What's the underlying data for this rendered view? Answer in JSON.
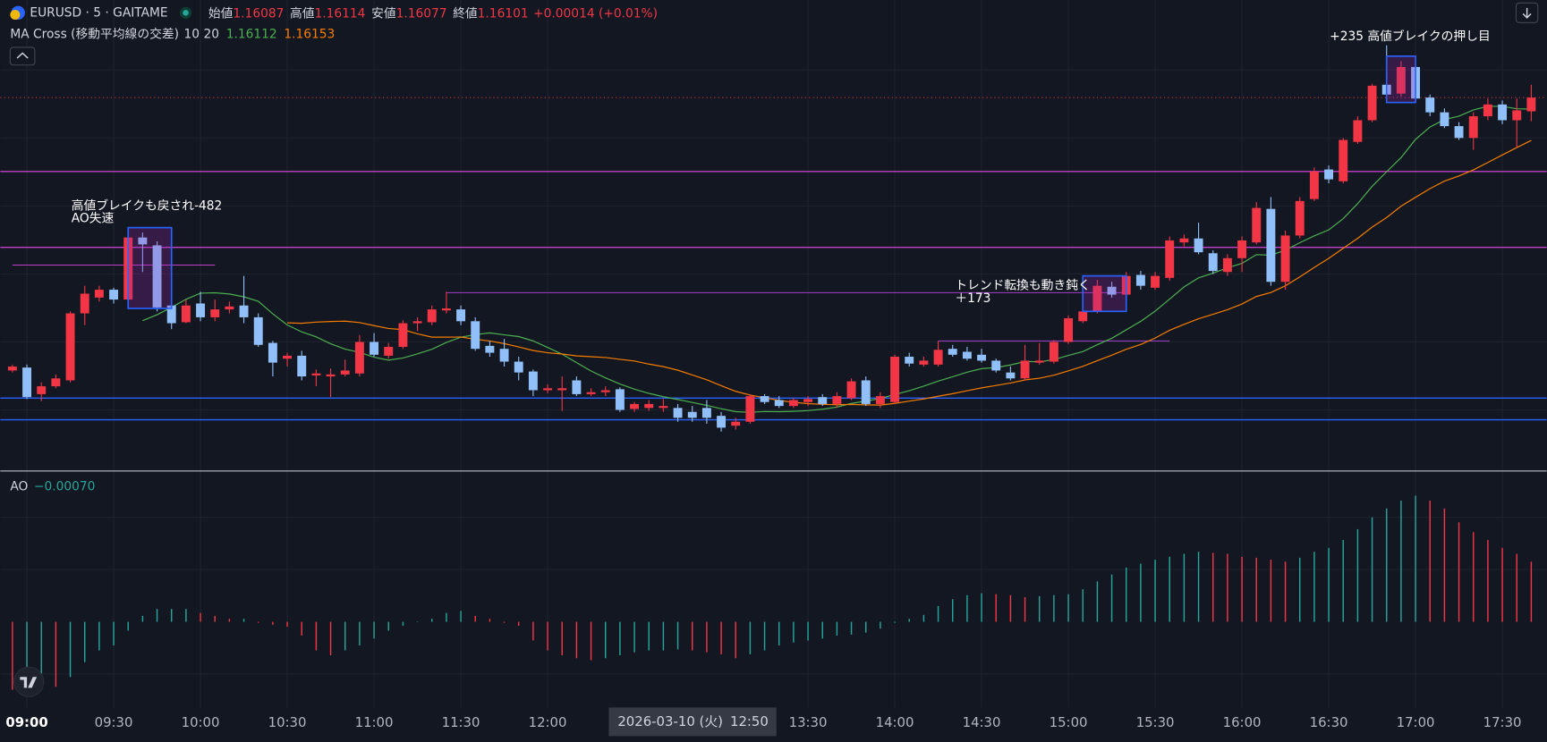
{
  "header": {
    "symbol": "EURUSD · 5 · GAITAME",
    "labels": {
      "open": "始値",
      "high": "高値",
      "low": "安値",
      "close": "終値"
    },
    "change": "+0.00014 (+0.01%)"
  },
  "chart_data": [
    {
      "type": "candlestick",
      "x": [
        "08:55",
        "09:00",
        "09:05",
        "09:10",
        "09:15",
        "09:20",
        "09:25",
        "09:30",
        "09:35",
        "09:40",
        "09:45",
        "09:50",
        "09:55",
        "10:00",
        "10:05",
        "10:10",
        "10:15",
        "10:20",
        "10:25",
        "10:30",
        "10:35",
        "10:40",
        "10:45",
        "10:50",
        "10:55",
        "11:00",
        "11:05",
        "11:10",
        "11:15",
        "11:20",
        "11:25",
        "11:30",
        "11:35",
        "11:40",
        "11:45",
        "11:50",
        "11:55",
        "12:00",
        "12:05",
        "12:10",
        "12:15",
        "12:20",
        "12:25",
        "12:30",
        "12:35",
        "12:40",
        "12:45",
        "12:50",
        "12:55",
        "13:00",
        "13:05",
        "13:10",
        "13:15",
        "13:20",
        "13:25",
        "13:30",
        "13:35",
        "13:40",
        "13:45",
        "13:50",
        "13:55",
        "14:00",
        "14:05",
        "14:10",
        "14:15",
        "14:20",
        "14:25",
        "14:30",
        "14:35",
        "14:40",
        "14:45",
        "14:50",
        "14:55",
        "15:00",
        "15:05",
        "15:10",
        "15:15",
        "15:20",
        "15:25",
        "15:30",
        "15:35",
        "15:40",
        "15:45",
        "15:50",
        "15:55",
        "16:00",
        "16:05",
        "16:10",
        "16:15",
        "16:20",
        "16:25",
        "16:30",
        "16:35",
        "16:40",
        "16:45",
        "16:50",
        "16:55",
        "17:00",
        "17:05",
        "17:10",
        "17:15",
        "17:20",
        "17:25",
        "17:30",
        "17:35",
        "17:40"
      ],
      "open": [
        1.15824,
        1.15827,
        1.158,
        1.15808,
        1.15814,
        1.15882,
        1.15898,
        1.15906,
        1.15896,
        1.15959,
        1.15951,
        1.1589,
        1.15873,
        1.15892,
        1.15878,
        1.15886,
        1.1589,
        1.15878,
        1.15852,
        1.15836,
        1.15839,
        1.15819,
        1.15818,
        1.1582,
        1.15821,
        1.15853,
        1.15839,
        1.15848,
        1.15872,
        1.15873,
        1.15885,
        1.15886,
        1.15874,
        1.15849,
        1.15846,
        1.15833,
        1.15823,
        1.15804,
        1.15804,
        1.15814,
        1.158,
        1.15802,
        1.15805,
        1.15785,
        1.15786,
        1.15786,
        1.15786,
        1.15782,
        1.15786,
        1.15778,
        1.15768,
        1.15772,
        1.15798,
        1.15794,
        1.15788,
        1.15792,
        1.15797,
        1.1579,
        1.15796,
        1.15814,
        1.1579,
        1.15792,
        1.15838,
        1.1583,
        1.1583,
        1.15846,
        1.15843,
        1.1584,
        1.15834,
        1.15822,
        1.15816,
        1.15832,
        1.15833,
        1.15853,
        1.15874,
        1.15884,
        1.15909,
        1.15901,
        1.15921,
        1.15908,
        1.15918,
        1.15954,
        1.15958,
        1.15943,
        1.15924,
        1.15938,
        1.15954,
        1.15988,
        1.15914,
        1.15961,
        1.15998,
        1.16028,
        1.16016,
        1.16056,
        1.16078,
        1.16114,
        1.16105,
        1.16132,
        1.16101,
        1.16086,
        1.16072,
        1.1606,
        1.16082,
        1.16094,
        1.16078,
        1.16087
      ],
      "high": [
        1.1583,
        1.1583,
        1.15812,
        1.1582,
        1.15884,
        1.1591,
        1.1591,
        1.15908,
        1.15968,
        1.15964,
        1.15955,
        1.15894,
        1.15896,
        1.15904,
        1.15896,
        1.15894,
        1.1592,
        1.15882,
        1.15854,
        1.15842,
        1.15844,
        1.15825,
        1.15826,
        1.15835,
        1.1586,
        1.15862,
        1.15852,
        1.15875,
        1.15878,
        1.1589,
        1.15904,
        1.1589,
        1.15878,
        1.15854,
        1.15856,
        1.15838,
        1.15825,
        1.1581,
        1.15818,
        1.15818,
        1.15806,
        1.15808,
        1.15807,
        1.15792,
        1.15794,
        1.15795,
        1.1579,
        1.15788,
        1.15794,
        1.15782,
        1.15776,
        1.158,
        1.158,
        1.15798,
        1.15796,
        1.15798,
        1.158,
        1.15802,
        1.15816,
        1.15818,
        1.15802,
        1.1584,
        1.15842,
        1.15838,
        1.15854,
        1.1585,
        1.15848,
        1.15846,
        1.15836,
        1.15828,
        1.1585,
        1.15852,
        1.15855,
        1.1588,
        1.15888,
        1.15916,
        1.15914,
        1.15924,
        1.15925,
        1.15924,
        1.1596,
        1.15962,
        1.15974,
        1.15946,
        1.15942,
        1.1596,
        1.15995,
        1.16,
        1.15966,
        1.16,
        1.1603,
        1.16032,
        1.1606,
        1.16082,
        1.16115,
        1.16154,
        1.16138,
        1.16135,
        1.16104,
        1.1609,
        1.16076,
        1.16086,
        1.161,
        1.16098,
        1.161,
        1.16114
      ],
      "low": [
        1.15822,
        1.15795,
        1.15793,
        1.15806,
        1.15812,
        1.1587,
        1.15894,
        1.15892,
        1.15888,
        1.15924,
        1.15884,
        1.15866,
        1.15872,
        1.15874,
        1.15874,
        1.15882,
        1.15872,
        1.15848,
        1.15818,
        1.15828,
        1.15814,
        1.15808,
        1.15797,
        1.15818,
        1.15818,
        1.15838,
        1.15836,
        1.15846,
        1.15864,
        1.1587,
        1.15882,
        1.1587,
        1.15844,
        1.15838,
        1.15828,
        1.15814,
        1.15798,
        1.15801,
        1.15783,
        1.15798,
        1.15798,
        1.15798,
        1.15782,
        1.15782,
        1.15783,
        1.15782,
        1.15772,
        1.15772,
        1.1577,
        1.15762,
        1.15764,
        1.1577,
        1.1579,
        1.15786,
        1.15786,
        1.15788,
        1.15788,
        1.15786,
        1.15794,
        1.15788,
        1.15786,
        1.1579,
        1.15828,
        1.15828,
        1.15828,
        1.15838,
        1.15834,
        1.15832,
        1.15822,
        1.15814,
        1.15814,
        1.1583,
        1.15831,
        1.15851,
        1.15872,
        1.15882,
        1.15898,
        1.15898,
        1.15906,
        1.15906,
        1.15915,
        1.1595,
        1.15942,
        1.15922,
        1.1592,
        1.15924,
        1.15952,
        1.1591,
        1.15906,
        1.15958,
        1.15996,
        1.16014,
        1.16014,
        1.16054,
        1.16076,
        1.161,
        1.16102,
        1.16096,
        1.16082,
        1.1607,
        1.16058,
        1.16048,
        1.16078,
        1.16074,
        1.1605,
        1.16077
      ],
      "close": [
        1.15828,
        1.15797,
        1.15808,
        1.15816,
        1.15882,
        1.15902,
        1.15906,
        1.15896,
        1.15959,
        1.15952,
        1.15888,
        1.15872,
        1.1589,
        1.15878,
        1.15886,
        1.15889,
        1.15878,
        1.1585,
        1.15832,
        1.15839,
        1.15818,
        1.15821,
        1.1582,
        1.15824,
        1.15853,
        1.1584,
        1.15848,
        1.15872,
        1.15874,
        1.15886,
        1.15887,
        1.15874,
        1.15846,
        1.15842,
        1.15833,
        1.15822,
        1.15804,
        1.15806,
        1.15806,
        1.158,
        1.15802,
        1.15804,
        1.15784,
        1.1579,
        1.1579,
        1.15788,
        1.15776,
        1.15776,
        1.15776,
        1.15766,
        1.15772,
        1.15798,
        1.15792,
        1.15788,
        1.15794,
        1.15795,
        1.1579,
        1.15798,
        1.15813,
        1.1579,
        1.15798,
        1.15838,
        1.15831,
        1.15834,
        1.15845,
        1.1584,
        1.15836,
        1.15834,
        1.15824,
        1.15816,
        1.15834,
        1.15834,
        1.15853,
        1.15877,
        1.15884,
        1.1591,
        1.15901,
        1.1592,
        1.1591,
        1.1592,
        1.15956,
        1.15958,
        1.15944,
        1.15925,
        1.15938,
        1.15956,
        1.15989,
        1.15914,
        1.15961,
        1.15996,
        1.16026,
        1.16018,
        1.16058,
        1.16078,
        1.16113,
        1.16104,
        1.16132,
        1.161,
        1.16086,
        1.16072,
        1.1606,
        1.16082,
        1.16094,
        1.16078,
        1.16088,
        1.16101
      ],
      "ylim": [
        1.15722,
        1.162
      ],
      "ygrid": [
        1.16129,
        1.1606,
        1.15991,
        1.15922,
        1.15853,
        1.15784
      ],
      "xticks": [
        "09:00",
        "09:30",
        "10:00",
        "10:30",
        "11:00",
        "11:30",
        "12:00",
        "13:30",
        "14:00",
        "14:30",
        "15:00",
        "15:30",
        "16:00",
        "16:30",
        "17:00",
        "17:30"
      ],
      "colors": {
        "up": "#f23645",
        "down": "#90bff9"
      },
      "last_price_line": true,
      "indicator": {
        "name": "MA Cross (移動平均線の交差)",
        "periods": [
          10,
          20
        ],
        "values": [
          "1.16112",
          "1.16153"
        ],
        "colors": [
          "#4caf50",
          "#f57c00"
        ]
      },
      "levels": [
        {
          "price": 1.16026,
          "color": "#c13fc9"
        },
        {
          "price": 1.15949,
          "color": "#c13fc9"
        },
        {
          "price": 1.15931,
          "color": "#c13fc9",
          "from": "08:55",
          "to": "10:05"
        },
        {
          "price": 1.15903,
          "color": "#a43fc9",
          "from": "11:25",
          "to": "15:20"
        },
        {
          "price": 1.15854,
          "color": "#a43fc9",
          "from": "14:15",
          "to": "15:35"
        },
        {
          "price": 1.15796,
          "color": "#2962ff"
        },
        {
          "price": 1.15774,
          "color": "#2962ff"
        }
      ],
      "boxes": [
        {
          "from": "09:35",
          "to": "09:50",
          "top": 1.15969,
          "bottom": 1.15887
        },
        {
          "from": "15:05",
          "to": "15:20",
          "top": 1.1592,
          "bottom": 1.15884
        },
        {
          "from": "16:50",
          "to": "17:00",
          "top": 1.16143,
          "bottom": 1.16096
        }
      ],
      "annotations": [
        "高値ブレイクも戻され-482",
        "AO失速",
        "トレンド転換も動き鈍く",
        "＋173",
        "+235 高値ブレイクの押し目"
      ],
      "crosshair": {
        "date": "2026-03-10 (火)",
        "time": "12:50"
      }
    },
    {
      "type": "bar",
      "title": "AO",
      "legend_value": "−0.00070",
      "values": [
        -0.00069,
        -0.00059,
        -0.00054,
        -0.00066,
        -0.00056,
        -0.00041,
        -0.00029,
        -0.00024,
        -9e-05,
        6e-05,
        0.00013,
        0.00013,
        0.00013,
        9e-05,
        6e-05,
        3e-05,
        3e-05,
        -1e-05,
        -3e-05,
        -5e-05,
        -0.00014,
        -0.00029,
        -0.00034,
        -0.00029,
        -0.00024,
        -0.00017,
        -9e-05,
        -4e-05,
        0,
        3e-05,
        9e-05,
        0.00011,
        6e-05,
        3e-05,
        -1e-05,
        -4e-05,
        -0.00019,
        -0.00029,
        -0.00034,
        -0.00037,
        -0.00039,
        -0.00037,
        -0.00034,
        -0.00031,
        -0.00029,
        -0.00029,
        -0.00028,
        -0.00029,
        -0.00031,
        -0.00033,
        -0.00037,
        -0.00033,
        -0.00029,
        -0.00024,
        -0.00021,
        -0.00019,
        -0.00017,
        -0.00014,
        -0.00013,
        -0.00011,
        -7e-05,
        -1e-05,
        3e-05,
        7e-05,
        0.00016,
        0.00023,
        0.00027,
        0.00029,
        0.00028,
        0.00027,
        0.00025,
        0.00026,
        0.00027,
        0.00028,
        0.00033,
        0.00041,
        0.00048,
        0.00055,
        0.00059,
        0.00063,
        0.00066,
        0.00069,
        0.00071,
        0.0007,
        0.00069,
        0.00066,
        0.00065,
        0.00063,
        0.00061,
        0.00065,
        0.00071,
        0.00075,
        0.00083,
        0.00094,
        0.00106,
        0.00115,
        0.00123,
        0.00128,
        0.00123,
        0.00115,
        0.00101,
        0.00091,
        0.00083,
        0.00075,
        0.00069,
        0.00061
      ],
      "ylim": [
        -0.00087,
        0.00153
      ],
      "ygrid": [
        0.00106,
        0.00053,
        -0.00053
      ],
      "colors": {
        "up": "#26a69a",
        "down": "#f23645"
      }
    }
  ]
}
